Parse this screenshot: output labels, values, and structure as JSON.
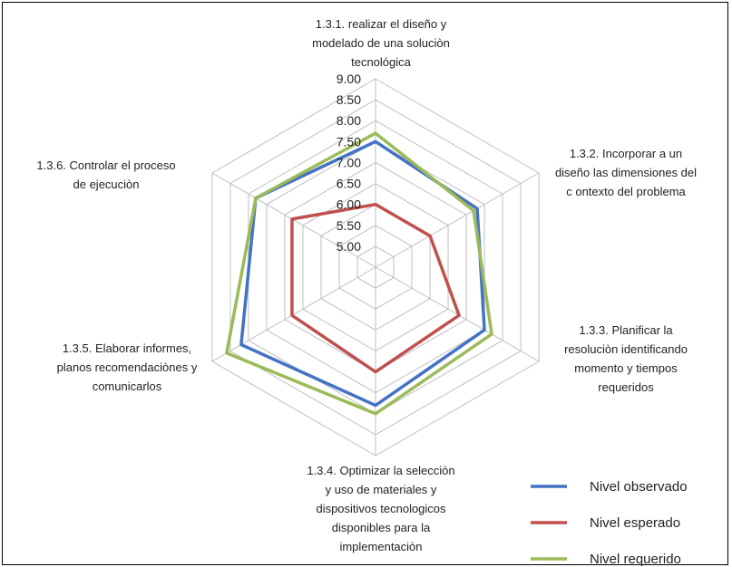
{
  "chart_data": {
    "type": "radar",
    "categories": [
      "1.3.1. realizar el diseño y modelado de una soluciòn tecnológica",
      "1.3.2. Incorporar a un diseño las dimensiones del c ontexto del problema",
      "1.3.3. Planificar la resoluciòn identificando momento y tiempos requeridos",
      "1.3.4. Optimizar la selecciòn y uso de materiales y dispositivos tecnologicos disponibles para la implementaciòn",
      "1.3.5. Elaborar informes, planos recomendaciònes y comunicarlos",
      "1.3.6. Controlar el proceso de ejecuciòn"
    ],
    "category_lines": [
      [
        "1.3.1. realizar el diseño y",
        "modelado de una soluciòn",
        "tecnológica"
      ],
      [
        "1.3.2. Incorporar a un",
        "diseño las dimensiones del",
        "c ontexto  del problema"
      ],
      [
        "1.3.3. Planificar la",
        "resoluciòn identificando",
        "momento y tiempos",
        "requeridos"
      ],
      [
        "1.3.4. Optimizar la selecciòn",
        "y uso de materiales y",
        "dispositivos tecnologicos",
        "disponibles para la",
        "implementaciòn"
      ],
      [
        "1.3.5. Elaborar informes,",
        "planos recomendaciònes y",
        "comunicarlos"
      ],
      [
        "1.3.6. Controlar el proceso",
        "de ejecuciòn"
      ]
    ],
    "series": [
      {
        "name": "Nivel observado",
        "color": "#4472C4",
        "values": [
          7.5,
          7.3,
          7.5,
          7.8,
          8.2,
          7.8
        ]
      },
      {
        "name": "Nivel esperado",
        "color": "#C0504D",
        "values": [
          6.0,
          6.0,
          6.8,
          7.0,
          6.8,
          6.8
        ]
      },
      {
        "name": "Nivel requerido",
        "color": "#9BBB59",
        "values": [
          7.7,
          7.2,
          7.7,
          8.0,
          8.6,
          7.8
        ]
      }
    ],
    "r_ticks": [
      "5.00",
      "5.50",
      "6.00",
      "6.50",
      "7.00",
      "7.50",
      "8.00",
      "8.50",
      "9.00"
    ],
    "r_range": [
      4.5,
      9.0
    ],
    "grid": true,
    "legend_position": "bottom-right"
  }
}
